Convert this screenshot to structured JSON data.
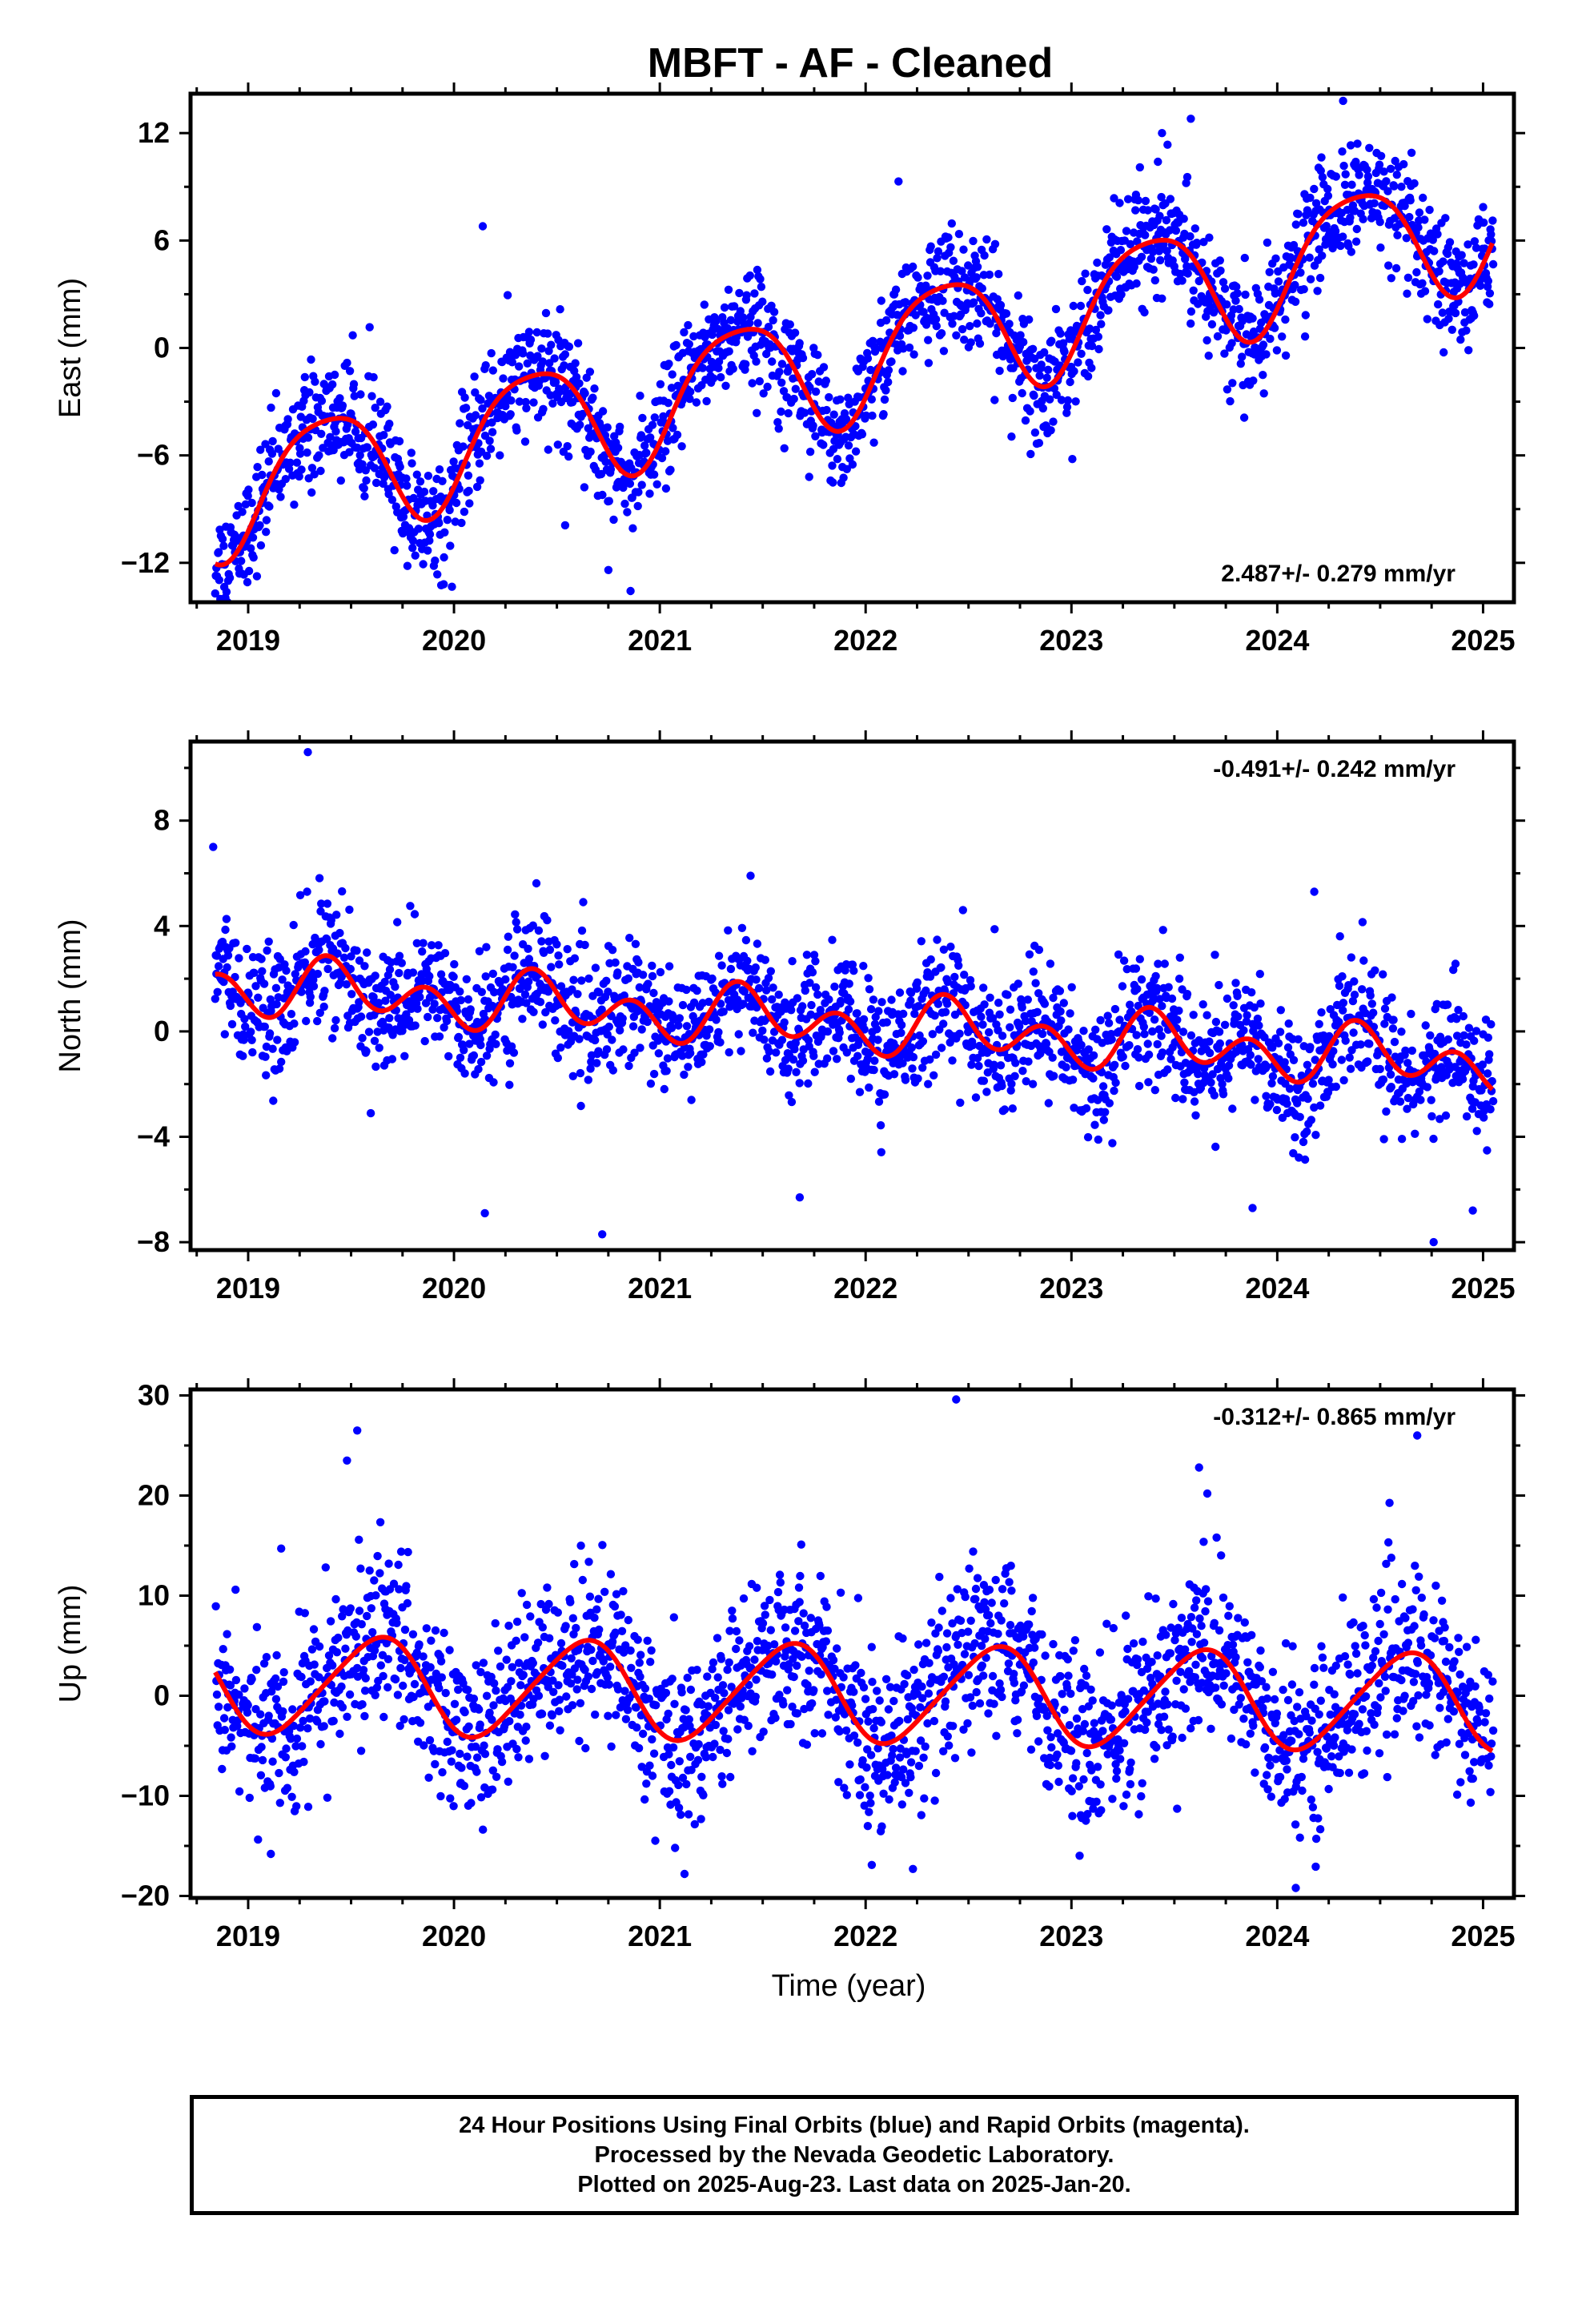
{
  "title": "MBFT  - AF - Cleaned",
  "colors": {
    "points": "#0000ff",
    "fit": "#ff0000",
    "frame": "#000000"
  },
  "xlabel": "Time (year)",
  "footer": {
    "line1": "24 Hour Positions Using Final Orbits (blue) and Rapid Orbits (magenta).",
    "line2": "Processed by the Nevada Geodetic Laboratory.",
    "line3": "Plotted on 2025-Aug-23. Last data on 2025-Jan-20."
  },
  "chart_data": [
    {
      "type": "scatter",
      "ylabel": "East (mm)",
      "velocity": "2.487+/- 0.279 mm/yr",
      "xlim": [
        2018.72,
        2025.15
      ],
      "ylim": [
        -14.2,
        14.2
      ],
      "yticks": [
        12,
        6,
        0,
        -6,
        -12
      ],
      "xticks": [
        2019,
        2020,
        2021,
        2022,
        2023,
        2024,
        2025
      ],
      "data_span": [
        2018.84,
        2025.05
      ],
      "model": {
        "trend_mm_per_yr": 2.487,
        "offset_at_start": -8.2,
        "annual_amp": 3.4,
        "annual_phase_peak": 0.38,
        "semiannual_amp": 0.6,
        "semiannual_phase_peak": 0.12
      },
      "scatter_sd": 1.6,
      "outliers": [
        [
          2019.95,
          -13.2
        ],
        [
          2020.54,
          -9.9
        ],
        [
          2020.75,
          -12.4
        ],
        [
          2020.14,
          6.8
        ],
        [
          2023.58,
          12.8
        ],
        [
          2024.32,
          13.8
        ],
        [
          2022.16,
          9.3
        ],
        [
          2023.44,
          12.0
        ],
        [
          2023.42,
          10.4
        ]
      ],
      "series": [
        {
          "name": "",
          "kind": "daily positions (blue dots)"
        },
        {
          "name": "",
          "kind": "model fit (red line)"
        }
      ]
    },
    {
      "type": "scatter",
      "ylabel": "North (mm)",
      "velocity": "-0.491+/- 0.242 mm/yr",
      "xlim": [
        2018.72,
        2025.15
      ],
      "ylim": [
        -8.3,
        11.0
      ],
      "yticks": [
        8,
        4,
        0,
        -4,
        -8
      ],
      "xticks": [
        2019,
        2020,
        2021,
        2022,
        2023,
        2024,
        2025
      ],
      "data_span": [
        2018.84,
        2025.05
      ],
      "model": {
        "trend_mm_per_yr": -0.491,
        "offset_at_start": 1.8,
        "annual_amp": 0.55,
        "annual_phase_peak": 0.45,
        "semiannual_amp": 0.85,
        "semiannual_phase_peak": 0.37
      },
      "scatter_sd": 1.2,
      "outliers": [
        [
          2019.29,
          10.6
        ],
        [
          2020.15,
          -6.9
        ],
        [
          2020.72,
          -7.7
        ],
        [
          2021.68,
          -6.3
        ],
        [
          2023.88,
          -6.7
        ],
        [
          2024.76,
          -8.0
        ],
        [
          2024.95,
          -6.8
        ],
        [
          2018.83,
          7.0
        ],
        [
          2024.18,
          5.3
        ]
      ],
      "series": [
        {
          "name": "",
          "kind": "daily positions (blue dots)"
        },
        {
          "name": "",
          "kind": "model fit (red line)"
        }
      ]
    },
    {
      "type": "scatter",
      "ylabel": "Up (mm)",
      "velocity": "-0.312+/- 0.865 mm/yr",
      "xlim": [
        2018.72,
        2025.15
      ],
      "ylim": [
        -20.2,
        30.6
      ],
      "yticks": [
        30,
        20,
        10,
        0,
        -10,
        -20
      ],
      "xticks": [
        2019,
        2020,
        2021,
        2022,
        2023,
        2024,
        2025
      ],
      "data_span": [
        2018.84,
        2025.05
      ],
      "model": {
        "trend_mm_per_yr": -0.312,
        "offset_at_start": 1.2,
        "annual_amp": 4.8,
        "annual_phase_peak": 0.62,
        "semiannual_amp": 0.6,
        "semiannual_phase_peak": 0.25
      },
      "scatter_sd": 4.2,
      "outliers": [
        [
          2019.48,
          23.5
        ],
        [
          2019.53,
          26.5
        ],
        [
          2022.44,
          29.6
        ],
        [
          2024.68,
          26.0
        ],
        [
          2023.62,
          22.8
        ],
        [
          2021.12,
          -17.8
        ],
        [
          2022.03,
          -16.9
        ],
        [
          2022.23,
          -17.3
        ],
        [
          2024.09,
          -19.2
        ],
        [
          2019.11,
          -15.8
        ],
        [
          2023.66,
          20.2
        ]
      ],
      "series": [
        {
          "name": "",
          "kind": "daily positions (blue dots)"
        },
        {
          "name": "",
          "kind": "model fit (red line)"
        }
      ]
    }
  ]
}
